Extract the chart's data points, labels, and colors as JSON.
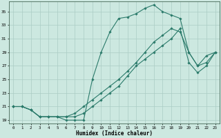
{
  "title": "",
  "xlabel": "Humidex (Indice chaleur)",
  "ylabel": "",
  "background_color": "#cce8e0",
  "grid_color": "#aaccC4",
  "line_color": "#2a7a6a",
  "xlim": [
    -0.5,
    23.5
  ],
  "ylim": [
    18.5,
    36.5
  ],
  "yticks": [
    19,
    21,
    23,
    25,
    27,
    29,
    31,
    33,
    35
  ],
  "xticks": [
    0,
    1,
    2,
    3,
    4,
    5,
    6,
    7,
    8,
    9,
    10,
    11,
    12,
    13,
    14,
    15,
    16,
    17,
    18,
    19,
    20,
    21,
    22,
    23
  ],
  "line1_x": [
    0,
    1,
    2,
    3,
    4,
    5,
    6,
    7,
    8,
    9,
    10,
    11,
    12,
    13,
    14,
    15,
    16,
    17,
    18,
    19,
    20,
    21,
    22,
    23
  ],
  "line1_y": [
    21,
    21,
    20.5,
    19.5,
    19.5,
    19.5,
    19,
    19,
    19,
    25,
    29,
    32,
    34,
    34.2,
    34.7,
    35.5,
    36,
    35,
    34.5,
    34,
    29,
    27,
    28.5,
    29
  ],
  "line2_x": [
    0,
    1,
    2,
    3,
    4,
    5,
    6,
    7,
    8,
    9,
    10,
    11,
    12,
    13,
    14,
    15,
    16,
    17,
    18,
    19,
    20,
    21,
    22,
    23
  ],
  "line2_y": [
    21,
    21,
    20.5,
    19.5,
    19.5,
    19.5,
    19.5,
    20,
    21,
    22,
    23,
    24,
    25,
    26.2,
    27.5,
    29,
    30.5,
    31.5,
    32.5,
    32,
    29,
    27,
    27.5,
    29
  ],
  "line3_x": [
    0,
    1,
    2,
    3,
    4,
    5,
    6,
    7,
    8,
    9,
    10,
    11,
    12,
    13,
    14,
    15,
    16,
    17,
    18,
    19,
    20,
    21,
    22,
    23
  ],
  "line3_y": [
    21,
    21,
    20.5,
    19.5,
    19.5,
    19.5,
    19.5,
    19.5,
    20,
    21,
    22,
    23,
    24,
    25.5,
    27,
    28,
    29,
    30,
    31,
    32.5,
    27.5,
    26,
    27,
    29
  ]
}
